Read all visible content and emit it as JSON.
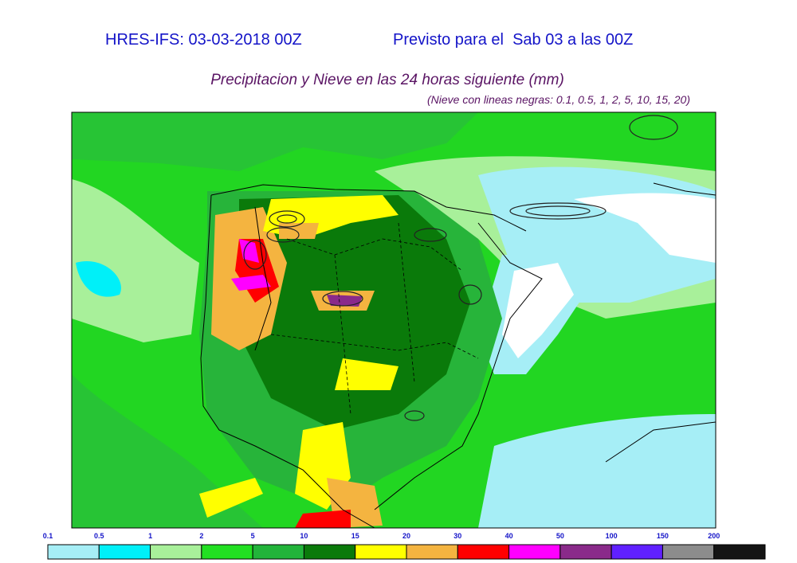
{
  "header": {
    "run": "HRES-IFS: 03-03-2018 00Z",
    "valid": "Previsto para el  Sab 03 a las 00Z",
    "title": "Precipitacion y Nieve en las 24 horas siguiente (mm)",
    "subtitle": "(Nieve con lineas negras: 0.1, 0.5, 1, 2, 5, 10, 15, 20)"
  },
  "legend": {
    "ticks": [
      0.1,
      0.5,
      1,
      2,
      5,
      10,
      15,
      20,
      30,
      40,
      50,
      100,
      150,
      200
    ],
    "colors": [
      "#a6eef6",
      "#00f0f8",
      "#a8f09a",
      "#22e022",
      "#22b43a",
      "#0a7a0a",
      "#ffff00",
      "#f4b440",
      "#ff0000",
      "#ff00ff",
      "#8a2a8a",
      "#6020ff",
      "#8c8c8c",
      "#141414"
    ]
  }
}
